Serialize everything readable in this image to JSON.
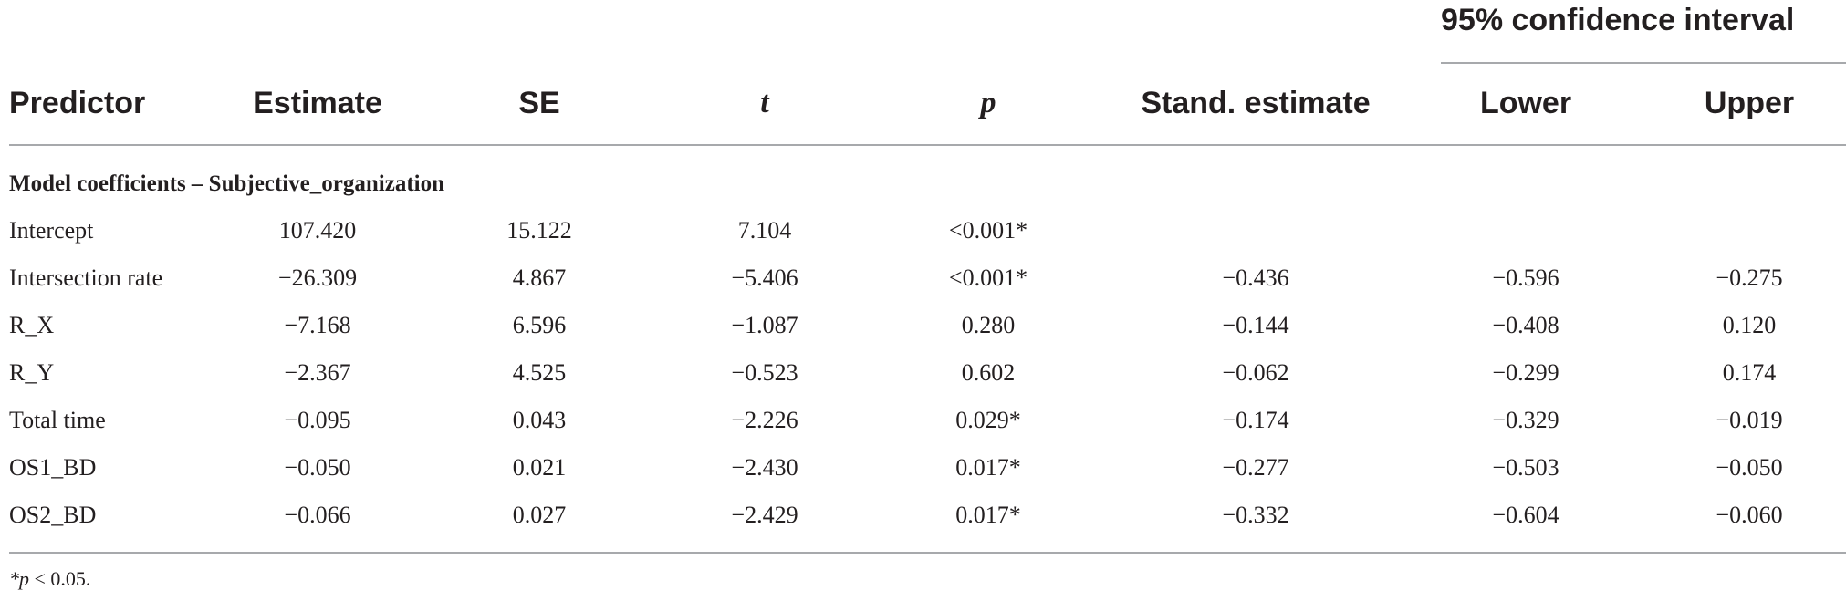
{
  "table": {
    "ci_header": "95% confidence interval",
    "headers": [
      "Predictor",
      "Estimate",
      "SE",
      "t",
      "p",
      "Stand. estimate",
      "Lower",
      "Upper"
    ],
    "section_title": "Model coefficients – Subjective_organization",
    "rows": [
      [
        "Intercept",
        "107.420",
        "15.122",
        "7.104",
        "<0.001*",
        "",
        "",
        ""
      ],
      [
        "Intersection rate",
        "−26.309",
        "4.867",
        "−5.406",
        "<0.001*",
        "−0.436",
        "−0.596",
        "−0.275"
      ],
      [
        "R_X",
        "−7.168",
        "6.596",
        "−1.087",
        "0.280",
        "−0.144",
        "−0.408",
        "0.120"
      ],
      [
        "R_Y",
        "−2.367",
        "4.525",
        "−0.523",
        "0.602",
        "−0.062",
        "−0.299",
        "0.174"
      ],
      [
        "Total time",
        "−0.095",
        "0.043",
        "−2.226",
        "0.029*",
        "−0.174",
        "−0.329",
        "−0.019"
      ],
      [
        "OS1_BD",
        "−0.050",
        "0.021",
        "−2.430",
        "0.017*",
        "−0.277",
        "−0.503",
        "−0.050"
      ],
      [
        "OS2_BD",
        "−0.066",
        "0.027",
        "−2.429",
        "0.017*",
        "−0.332",
        "−0.604",
        "−0.060"
      ]
    ],
    "footnote_symbol": "*p",
    "footnote_text": " < 0.05."
  }
}
